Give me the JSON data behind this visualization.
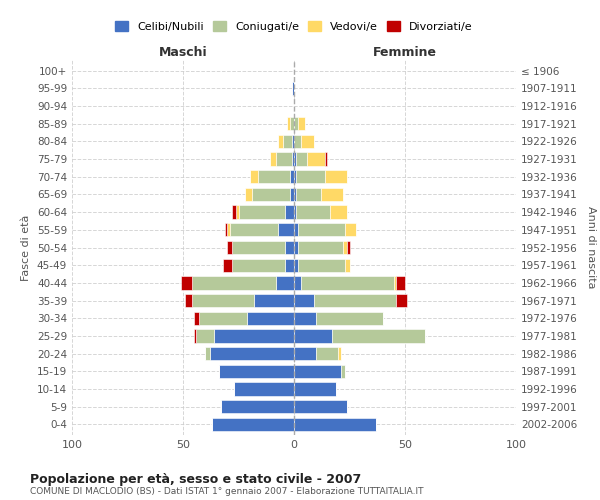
{
  "age_groups": [
    "100+",
    "95-99",
    "90-94",
    "85-89",
    "80-84",
    "75-79",
    "70-74",
    "65-69",
    "60-64",
    "55-59",
    "50-54",
    "45-49",
    "40-44",
    "35-39",
    "30-34",
    "25-29",
    "20-24",
    "15-19",
    "10-14",
    "5-9",
    "0-4"
  ],
  "birth_years": [
    "≤ 1906",
    "1907-1911",
    "1912-1916",
    "1917-1921",
    "1922-1926",
    "1927-1931",
    "1932-1936",
    "1937-1941",
    "1942-1946",
    "1947-1951",
    "1952-1956",
    "1957-1961",
    "1962-1966",
    "1967-1971",
    "1972-1976",
    "1977-1981",
    "1982-1986",
    "1987-1991",
    "1992-1996",
    "1997-2001",
    "2002-2006"
  ],
  "male": {
    "celibi": [
      0,
      1,
      0,
      0,
      1,
      1,
      2,
      2,
      4,
      7,
      4,
      4,
      8,
      18,
      21,
      36,
      38,
      34,
      27,
      33,
      37
    ],
    "coniugati": [
      0,
      0,
      0,
      2,
      4,
      7,
      14,
      17,
      21,
      22,
      24,
      24,
      38,
      28,
      22,
      8,
      2,
      0,
      0,
      0,
      0
    ],
    "vedovi": [
      0,
      0,
      0,
      1,
      2,
      3,
      4,
      3,
      1,
      1,
      0,
      0,
      0,
      0,
      0,
      0,
      0,
      0,
      0,
      0,
      0
    ],
    "divorziati": [
      0,
      0,
      0,
      0,
      0,
      0,
      0,
      0,
      2,
      1,
      2,
      4,
      5,
      3,
      2,
      1,
      0,
      0,
      0,
      0,
      0
    ]
  },
  "female": {
    "nubili": [
      0,
      0,
      0,
      0,
      0,
      1,
      1,
      1,
      1,
      2,
      2,
      2,
      3,
      9,
      10,
      17,
      10,
      21,
      19,
      24,
      37
    ],
    "coniugate": [
      0,
      0,
      0,
      2,
      3,
      5,
      13,
      11,
      15,
      21,
      20,
      21,
      42,
      37,
      30,
      42,
      10,
      2,
      0,
      0,
      0
    ],
    "vedove": [
      0,
      0,
      0,
      3,
      6,
      8,
      10,
      10,
      8,
      5,
      2,
      2,
      1,
      0,
      0,
      0,
      1,
      0,
      0,
      0,
      0
    ],
    "divorziate": [
      0,
      0,
      0,
      0,
      0,
      1,
      0,
      0,
      0,
      0,
      1,
      0,
      4,
      5,
      0,
      0,
      0,
      0,
      0,
      0,
      0
    ]
  },
  "colors": {
    "celibi_nubili": "#4472c4",
    "coniugati": "#b5c99a",
    "vedovi": "#ffd966",
    "divorziati": "#c00000"
  },
  "title": "Popolazione per età, sesso e stato civile - 2007",
  "subtitle": "COMUNE DI MACLODIO (BS) - Dati ISTAT 1° gennaio 2007 - Elaborazione TUTTAITALIA.IT",
  "xlabel_left": "Maschi",
  "xlabel_right": "Femmine",
  "ylabel_left": "Fasce di età",
  "ylabel_right": "Anni di nascita",
  "xlim": 100,
  "bg_color": "#ffffff",
  "grid_color": "#cccccc",
  "legend_labels": [
    "Celibi/Nubili",
    "Coniugati/e",
    "Vedovi/e",
    "Divorziati/e"
  ]
}
